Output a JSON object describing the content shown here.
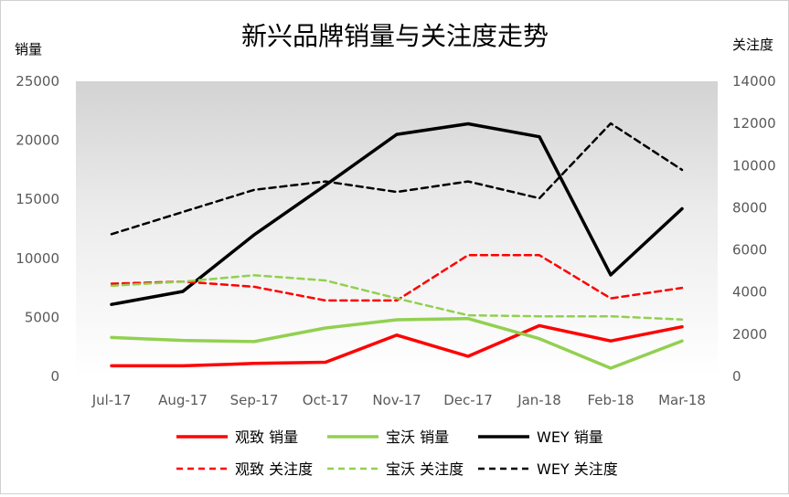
{
  "chart_data": {
    "type": "line",
    "title": "新兴品牌销量与关注度走势",
    "ylabel_left": "销量",
    "ylabel_right": "关注度",
    "categories": [
      "Jul-17",
      "Aug-17",
      "Sep-17",
      "Oct-17",
      "Nov-17",
      "Dec-17",
      "Jan-18",
      "Feb-18",
      "Mar-18"
    ],
    "ylim_left": [
      0,
      25000
    ],
    "yticks_left": [
      0,
      5000,
      10000,
      15000,
      20000,
      25000
    ],
    "ylim_right": [
      0,
      14000
    ],
    "yticks_right": [
      0,
      2000,
      4000,
      6000,
      8000,
      10000,
      12000,
      14000
    ],
    "grid": false,
    "legend_position": "bottom",
    "series": [
      {
        "name": "观致 销量",
        "axis": "left",
        "style": "solid",
        "color": "#ff0000",
        "values": [
          900,
          900,
          1100,
          1200,
          3500,
          1700,
          4300,
          3000,
          4200
        ]
      },
      {
        "name": "宝沃 销量",
        "axis": "left",
        "style": "solid",
        "color": "#92d050",
        "values": [
          3300,
          3050,
          2950,
          4100,
          4800,
          4900,
          3200,
          700,
          3000
        ]
      },
      {
        "name": "WEY 销量",
        "axis": "left",
        "style": "solid",
        "color": "#000000",
        "values": [
          6100,
          7200,
          12000,
          16200,
          20500,
          21400,
          20300,
          8600,
          14200
        ]
      },
      {
        "name": "观致 关注度",
        "axis": "right",
        "style": "dashed",
        "color": "#ff0000",
        "values": [
          4400,
          4500,
          4250,
          3600,
          3600,
          5750,
          5750,
          3700,
          4200
        ]
      },
      {
        "name": "宝沃 关注度",
        "axis": "right",
        "style": "dashed",
        "color": "#92d050",
        "values": [
          4300,
          4500,
          4800,
          4550,
          3700,
          2900,
          2850,
          2850,
          2700
        ]
      },
      {
        "name": "WEY 关注度",
        "axis": "right",
        "style": "dashed",
        "color": "#000000",
        "values": [
          6750,
          7800,
          8850,
          9250,
          8750,
          9250,
          8450,
          12000,
          9800
        ]
      }
    ]
  }
}
